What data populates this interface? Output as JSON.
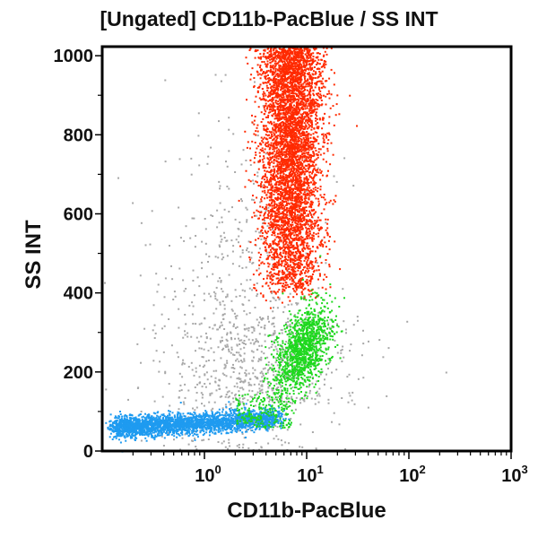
{
  "chart_data": {
    "type": "scatter",
    "title": "[Ungated] CD11b-PacBlue / SS INT",
    "xlabel": "CD11b-PacBlue",
    "ylabel": "SS INT",
    "x_scale": "log",
    "xlim": [
      0.1,
      1000
    ],
    "ylim": [
      0,
      1023
    ],
    "x_ticks": [
      {
        "base": "10",
        "exp": "0"
      },
      {
        "base": "10",
        "exp": "1"
      },
      {
        "base": "10",
        "exp": "2"
      },
      {
        "base": "10",
        "exp": "3"
      }
    ],
    "y_ticks": [
      "0",
      "200",
      "400",
      "600",
      "800",
      "1000"
    ],
    "grid": false,
    "populations": [
      {
        "color": "#1e9bf0",
        "x_center": 0.6,
        "x_range": [
          0.12,
          6
        ],
        "y_center": 75,
        "y_range": [
          30,
          130
        ]
      },
      {
        "color": "#1fd81f",
        "x_center": 10,
        "x_range": [
          3,
          30
        ],
        "y_center": 260,
        "y_range": [
          150,
          390
        ]
      },
      {
        "color": "#ff2a00",
        "x_center": 7,
        "x_range": [
          1.5,
          30
        ],
        "y_center": 700,
        "y_range": [
          370,
          1023
        ]
      },
      {
        "color": "#a8a8a8",
        "x_center": 3,
        "x_range": [
          0.2,
          60
        ],
        "y_center": 300,
        "y_range": [
          0,
          1023
        ]
      }
    ]
  }
}
